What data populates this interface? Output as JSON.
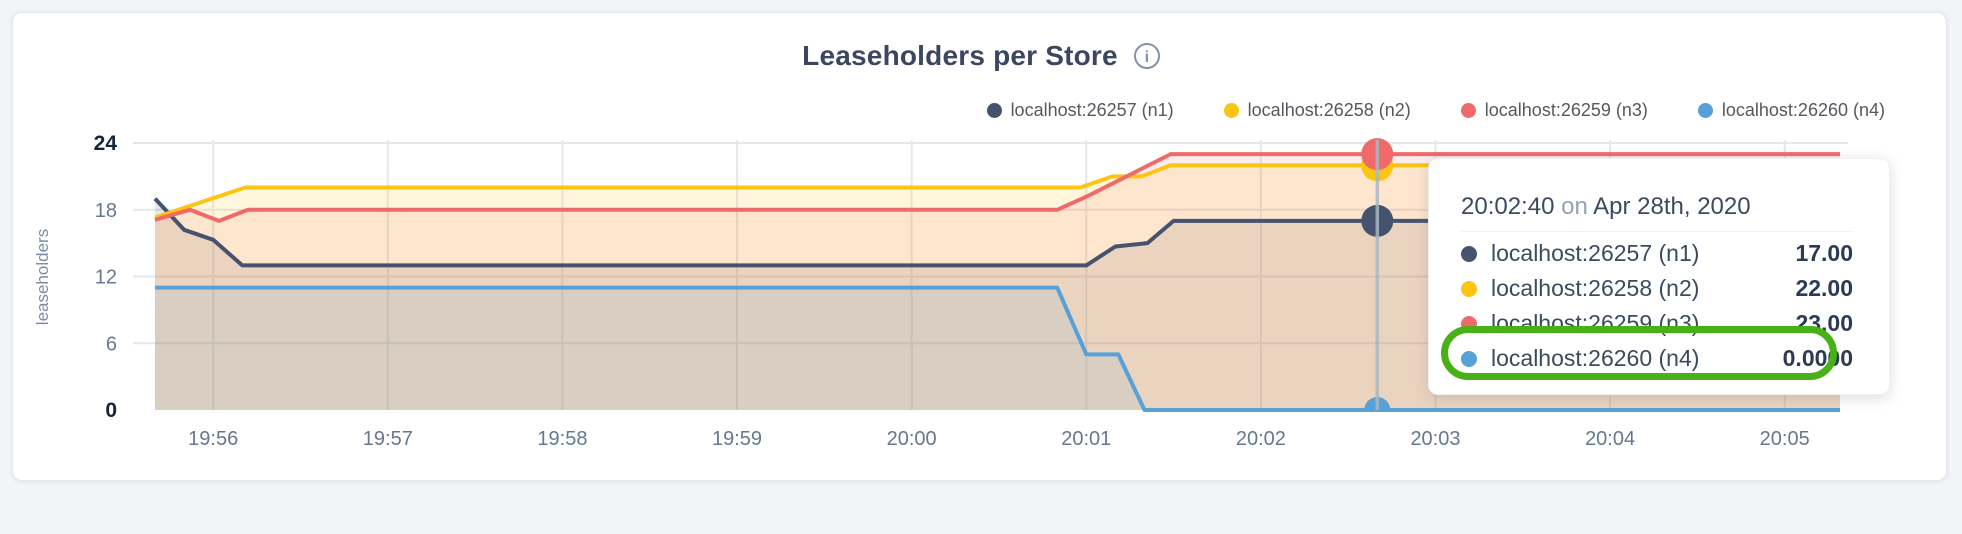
{
  "header": {
    "title": "Leaseholders per Store",
    "info_icon": "i"
  },
  "legend": {
    "items": [
      {
        "label": "localhost:26257 (n1)",
        "color": "#46536e"
      },
      {
        "label": "localhost:26258 (n2)",
        "color": "#fdc511"
      },
      {
        "label": "localhost:26259 (n3)",
        "color": "#f16a6a"
      },
      {
        "label": "localhost:26260 (n4)",
        "color": "#57a1d8"
      }
    ]
  },
  "chart_data": {
    "type": "area",
    "title": "Leaseholders per Store",
    "ylabel": "leaseholders",
    "ylim": [
      0,
      24
    ],
    "y_ticks": [
      0,
      6,
      12,
      18,
      24
    ],
    "grid": true,
    "legend_position": "top-right",
    "x_start_time": "19:55:40",
    "x_domain_seconds": [
      0,
      579
    ],
    "x_ticks": [
      "19:56",
      "19:57",
      "19:58",
      "19:59",
      "20:00",
      "20:01",
      "20:02",
      "20:03",
      "20:04",
      "20:05"
    ],
    "x_tick_seconds": [
      20,
      80,
      140,
      200,
      260,
      320,
      380,
      440,
      500,
      560
    ],
    "series": [
      {
        "name": "localhost:26257 (n1)",
        "color": "#46536e",
        "fill_opacity": 0.13,
        "points": [
          [
            0,
            19
          ],
          [
            10,
            16.2
          ],
          [
            20,
            15.3
          ],
          [
            30,
            13
          ],
          [
            320,
            13
          ],
          [
            330,
            14.7
          ],
          [
            341,
            15
          ],
          [
            350,
            17
          ],
          [
            579,
            17
          ]
        ]
      },
      {
        "name": "localhost:26258 (n2)",
        "color": "#fdc511",
        "fill_opacity": 0.14,
        "points": [
          [
            0,
            17.3
          ],
          [
            31,
            20
          ],
          [
            318,
            20
          ],
          [
            329,
            21
          ],
          [
            339,
            21
          ],
          [
            349,
            22
          ],
          [
            579,
            22
          ]
        ]
      },
      {
        "name": "localhost:26259 (n3)",
        "color": "#f16a6a",
        "fill_opacity": 0.13,
        "points": [
          [
            0,
            17.1
          ],
          [
            12,
            18
          ],
          [
            22,
            17
          ],
          [
            32,
            18
          ],
          [
            310,
            18
          ],
          [
            321,
            19.3
          ],
          [
            349,
            23
          ],
          [
            579,
            23
          ]
        ]
      },
      {
        "name": "localhost:26260 (n4)",
        "color": "#57a1d8",
        "fill_opacity": 0.12,
        "points": [
          [
            0,
            11
          ],
          [
            310,
            11
          ],
          [
            320,
            5
          ],
          [
            331,
            5
          ],
          [
            340,
            0
          ],
          [
            579,
            0
          ]
        ]
      }
    ],
    "hover": {
      "time_seconds": 420,
      "time_label": "20:02:40",
      "values": [
        17,
        22,
        23,
        0
      ],
      "line_color": "#aab6c2"
    }
  },
  "axes": {
    "y_label": "leaseholders"
  },
  "tooltip": {
    "time": "20:02:40",
    "conj": "on",
    "date": "Apr 28th, 2020",
    "rows": [
      {
        "label": "localhost:26257 (n1)",
        "value": "17.00",
        "color": "#46536e"
      },
      {
        "label": "localhost:26258 (n2)",
        "value": "22.00",
        "color": "#fdc511"
      },
      {
        "label": "localhost:26259 (n3)",
        "value": "23.00",
        "color": "#f16a6a"
      },
      {
        "label": "localhost:26260 (n4)",
        "value": "0.0000",
        "color": "#57a1d8"
      }
    ],
    "highlighted_row_index": 3,
    "highlight_color": "#48b118"
  }
}
